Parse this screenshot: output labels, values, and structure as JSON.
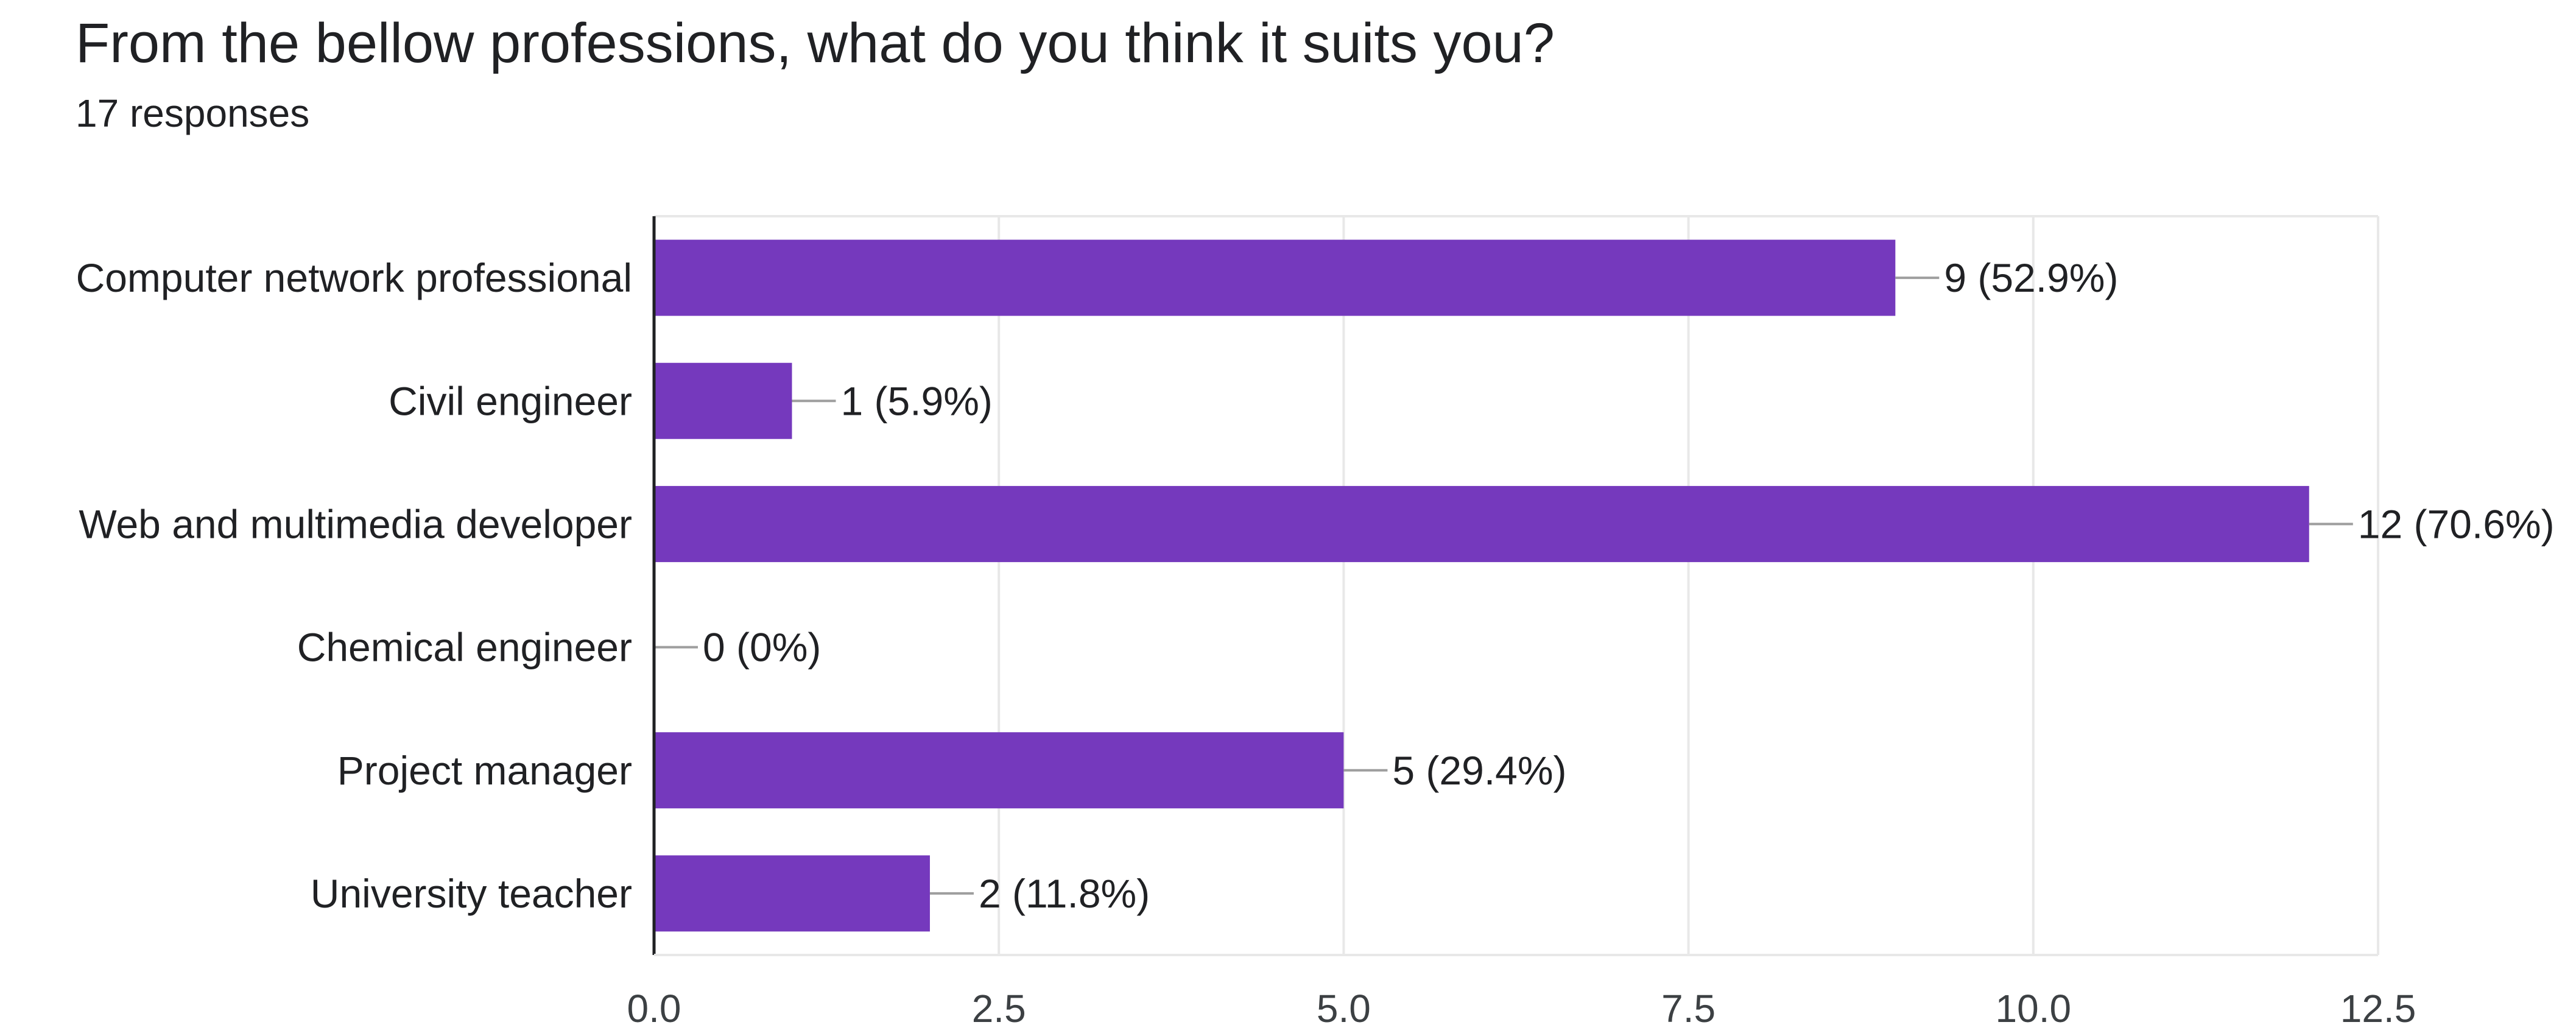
{
  "header": {
    "title": "From the bellow professions, what do you think it suits you?",
    "responses": "17 responses"
  },
  "chart_data": {
    "type": "bar",
    "orientation": "horizontal",
    "categories": [
      "Computer network professional",
      "Civil engineer",
      "Web and multimedia developer",
      "Chemical engineer",
      "Project manager",
      "University teacher"
    ],
    "values": [
      9,
      1,
      12,
      0,
      5,
      2
    ],
    "data_labels": [
      "9 (52.9%)",
      "1 (5.9%)",
      "12 (70.6%)",
      "0 (0%)",
      "5 (29.4%)",
      "2 (11.8%)"
    ],
    "title": "From the bellow professions, what do you think it suits you?",
    "subtitle": "17 responses",
    "xlim": [
      0,
      12.5
    ],
    "xticks": [
      0,
      2.5,
      5,
      7.5,
      10,
      12.5
    ],
    "xtick_labels": [
      "0.0",
      "2.5",
      "5.0",
      "7.5",
      "10.0",
      "12.5"
    ],
    "grid": true,
    "legend": "none",
    "bar_color": "#7539bd",
    "gridline_color": "#e8e8e8",
    "leader_line_color": "#9e9e9e",
    "axis_color": "#202124"
  }
}
